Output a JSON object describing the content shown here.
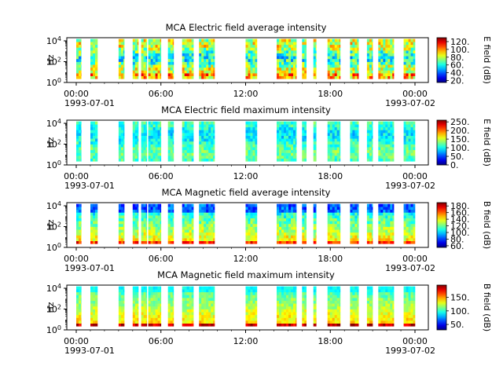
{
  "chart_data": [
    {
      "type": "heatmap",
      "title": "MCA  Electric field average intensity",
      "ylabel": "Hz",
      "yticks": [
        "10^0",
        "10^2",
        "10^4"
      ],
      "ylim": [
        1,
        20000
      ],
      "y_scale": "log",
      "xticks": [
        "00:00",
        "06:00",
        "12:00",
        "18:00",
        "00:00"
      ],
      "xdates": [
        "1993-07-01",
        "1993-07-02"
      ],
      "colorbar": {
        "label": "E field (dB)",
        "ticks": [
          "20.",
          "40.",
          "60.",
          "80.",
          "100.",
          "120."
        ],
        "range": [
          15,
          130
        ]
      },
      "data_intervals_utc_hours": [
        [
          0.0,
          0.35
        ],
        [
          1.0,
          1.5
        ],
        [
          3.0,
          3.4
        ],
        [
          4.0,
          4.4
        ],
        [
          4.6,
          5.0
        ],
        [
          5.1,
          6.0
        ],
        [
          6.5,
          6.9
        ],
        [
          7.5,
          8.3
        ],
        [
          8.7,
          9.8
        ],
        [
          12.0,
          12.8
        ],
        [
          14.2,
          15.6
        ],
        [
          16.0,
          16.3
        ],
        [
          16.8,
          17.0
        ],
        [
          17.8,
          18.7
        ],
        [
          19.4,
          20.0
        ],
        [
          20.6,
          21.0
        ],
        [
          21.4,
          22.5
        ],
        [
          23.2,
          24.0
        ]
      ],
      "color_level": "mid (~80 dB, green-yellow)"
    },
    {
      "type": "heatmap",
      "title": "MCA  Electric field maximum intensity",
      "ylabel": "Hz",
      "yticks": [
        "10^0",
        "10^2",
        "10^4"
      ],
      "ylim": [
        1,
        20000
      ],
      "y_scale": "log",
      "xticks": [
        "00:00",
        "06:00",
        "12:00",
        "18:00",
        "00:00"
      ],
      "xdates": [
        "1993-07-01",
        "1993-07-02"
      ],
      "colorbar": {
        "label": "E field (dB)",
        "ticks": [
          "0.",
          "50.",
          "100.",
          "150.",
          "200.",
          "250."
        ],
        "range": [
          0,
          260
        ]
      },
      "data_intervals_utc_hours": [
        [
          0.0,
          0.35
        ],
        [
          1.0,
          1.5
        ],
        [
          3.0,
          3.4
        ],
        [
          4.0,
          4.4
        ],
        [
          4.6,
          5.0
        ],
        [
          5.1,
          6.0
        ],
        [
          6.5,
          6.9
        ],
        [
          7.5,
          8.3
        ],
        [
          8.7,
          9.8
        ],
        [
          12.0,
          12.8
        ],
        [
          14.2,
          15.6
        ],
        [
          16.0,
          16.3
        ],
        [
          16.8,
          17.0
        ],
        [
          17.8,
          18.7
        ],
        [
          19.4,
          20.0
        ],
        [
          20.6,
          21.0
        ],
        [
          21.4,
          22.5
        ],
        [
          23.2,
          24.0
        ]
      ],
      "color_level": "low-mid (~100 dB, cyan-green)"
    },
    {
      "type": "heatmap",
      "title": "MCA  Magnetic field average intensity",
      "ylabel": "Hz",
      "yticks": [
        "10^0",
        "10^2",
        "10^4"
      ],
      "ylim": [
        1,
        20000
      ],
      "y_scale": "log",
      "xticks": [
        "00:00",
        "06:00",
        "12:00",
        "18:00",
        "00:00"
      ],
      "xdates": [
        "1993-07-01",
        "1993-07-02"
      ],
      "colorbar": {
        "label": "B field (dB)",
        "ticks": [
          "60.",
          "80.",
          "100.",
          "120.",
          "140.",
          "160.",
          "180."
        ],
        "range": [
          55,
          190
        ]
      },
      "data_intervals_utc_hours": [
        [
          0.0,
          0.35
        ],
        [
          1.0,
          1.5
        ],
        [
          3.0,
          3.4
        ],
        [
          4.0,
          4.4
        ],
        [
          4.6,
          5.0
        ],
        [
          5.1,
          6.0
        ],
        [
          6.5,
          6.9
        ],
        [
          7.5,
          8.3
        ],
        [
          8.7,
          9.8
        ],
        [
          12.0,
          12.8
        ],
        [
          14.2,
          15.6
        ],
        [
          16.0,
          16.3
        ],
        [
          16.8,
          17.0
        ],
        [
          17.8,
          18.7
        ],
        [
          19.4,
          20.0
        ],
        [
          20.6,
          21.0
        ],
        [
          21.4,
          22.5
        ],
        [
          23.2,
          24.0
        ]
      ],
      "color_level": "blue at high frequency, green-yellow at low frequency"
    },
    {
      "type": "heatmap",
      "title": "MCA  Magnetic field maximum intensity",
      "ylabel": "Hz",
      "yticks": [
        "10^0",
        "10^2",
        "10^4"
      ],
      "ylim": [
        1,
        20000
      ],
      "y_scale": "log",
      "xticks": [
        "00:00",
        "06:00",
        "12:00",
        "18:00",
        "00:00"
      ],
      "xdates": [
        "1993-07-01",
        "1993-07-02"
      ],
      "colorbar": {
        "label": "B field (dB)",
        "ticks": [
          "50.",
          "100.",
          "150."
        ],
        "range": [
          30,
          195
        ]
      },
      "data_intervals_utc_hours": [
        [
          0.0,
          0.35
        ],
        [
          1.0,
          1.5
        ],
        [
          3.0,
          3.4
        ],
        [
          4.0,
          4.4
        ],
        [
          4.6,
          5.0
        ],
        [
          5.1,
          6.0
        ],
        [
          6.5,
          6.9
        ],
        [
          7.5,
          8.3
        ],
        [
          8.7,
          9.8
        ],
        [
          12.0,
          12.8
        ],
        [
          14.2,
          15.6
        ],
        [
          16.0,
          16.3
        ],
        [
          16.8,
          17.0
        ],
        [
          17.8,
          18.7
        ],
        [
          19.4,
          20.0
        ],
        [
          20.6,
          21.0
        ],
        [
          21.4,
          22.5
        ],
        [
          23.2,
          24.0
        ]
      ],
      "color_level": "cyan at high frequency, green-yellow-orange at low frequency"
    }
  ]
}
